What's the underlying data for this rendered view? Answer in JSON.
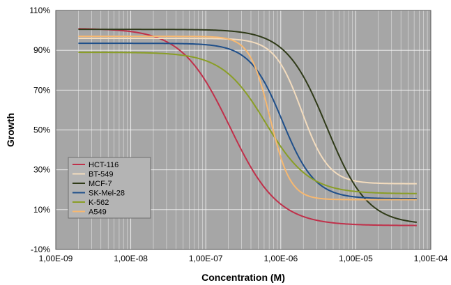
{
  "chart_data": {
    "type": "line",
    "xlabel": "Concentration (M)",
    "ylabel": "Growth",
    "x_scale": "log",
    "xlim": [
      1e-09,
      0.0001
    ],
    "ylim": [
      -10,
      110
    ],
    "grid": true,
    "legend_position": "bottom-left",
    "x_tick_values": [
      1e-09,
      1e-08,
      1e-07,
      1e-06,
      1e-05,
      0.0001
    ],
    "x_tick_labels": [
      "1,00E-09",
      "1,00E-08",
      "1,00E-07",
      "1,00E-06",
      "1,00E-05",
      "1,00E-04"
    ],
    "y_tick_values": [
      -10,
      10,
      30,
      50,
      70,
      90,
      110
    ],
    "y_tick_labels": [
      "-10%",
      "10%",
      "30%",
      "50%",
      "70%",
      "90%",
      "110%"
    ],
    "series": [
      {
        "name": "HCT-116",
        "color": "#c0304a",
        "x_range": [
          2e-09,
          6.5e-05
        ],
        "top": 101.0,
        "bottom": 2.0,
        "ec50": 2.1e-07,
        "hill": 1.35
      },
      {
        "name": "BT-549",
        "color": "#f3dcbe",
        "x_range": [
          2e-09,
          6.5e-05
        ],
        "top": 96.0,
        "bottom": 23.0,
        "ec50": 1.9e-06,
        "hill": 2.4
      },
      {
        "name": "MCF-7",
        "color": "#2f3a18",
        "x_range": [
          2e-09,
          6.5e-05
        ],
        "top": 100.5,
        "bottom": 2.5,
        "ec50": 4.1e-06,
        "hill": 1.6
      },
      {
        "name": "SK-Mel-28",
        "color": "#1f4f8a",
        "x_range": [
          2e-09,
          6.5e-05
        ],
        "top": 93.5,
        "bottom": 15.5,
        "ec50": 1.05e-06,
        "hill": 2.0
      },
      {
        "name": "K-562",
        "color": "#8a9e26",
        "x_range": [
          2e-09,
          6.5e-05
        ],
        "top": 89.0,
        "bottom": 18.0,
        "ec50": 6.3e-07,
        "hill": 1.5
      },
      {
        "name": "A549",
        "color": "#f7b870",
        "x_range": [
          2e-09,
          6.5e-05
        ],
        "top": 97.0,
        "bottom": 15.0,
        "ec50": 7.2e-07,
        "hill": 3.2
      }
    ]
  }
}
